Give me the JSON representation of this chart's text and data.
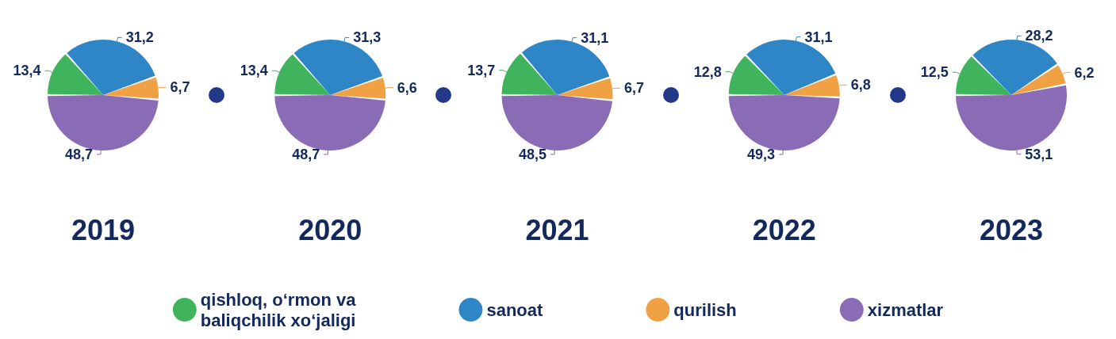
{
  "chart_data": {
    "type": "pie",
    "categories": [
      "qishloq, o‘rmon va baliqchilik xo‘jaligi",
      "sanoat",
      "qurilish",
      "xizmatlar"
    ],
    "colors": [
      "#3fb45c",
      "#2f86c6",
      "#f0a144",
      "#8a6bb5"
    ],
    "legend": "bottom",
    "series": [
      {
        "name": "2019",
        "values": [
          13.4,
          31.2,
          6.7,
          48.7
        ],
        "value_labels": [
          "13,4",
          "31,2",
          "6,7",
          "48,7"
        ]
      },
      {
        "name": "2020",
        "values": [
          13.4,
          31.3,
          6.6,
          48.7
        ],
        "value_labels": [
          "13,4",
          "31,3",
          "6,6",
          "48,7"
        ]
      },
      {
        "name": "2021",
        "values": [
          13.7,
          31.1,
          6.7,
          48.5
        ],
        "value_labels": [
          "13,7",
          "31,1",
          "6,7",
          "48,5"
        ]
      },
      {
        "name": "2022",
        "values": [
          12.8,
          31.1,
          6.8,
          49.3
        ],
        "value_labels": [
          "12,8",
          "31,1",
          "6,8",
          "49,3"
        ]
      },
      {
        "name": "2023",
        "values": [
          12.5,
          28.2,
          6.2,
          53.1
        ],
        "value_labels": [
          "12,5",
          "28,2",
          "6,2",
          "53,1"
        ]
      }
    ]
  }
}
